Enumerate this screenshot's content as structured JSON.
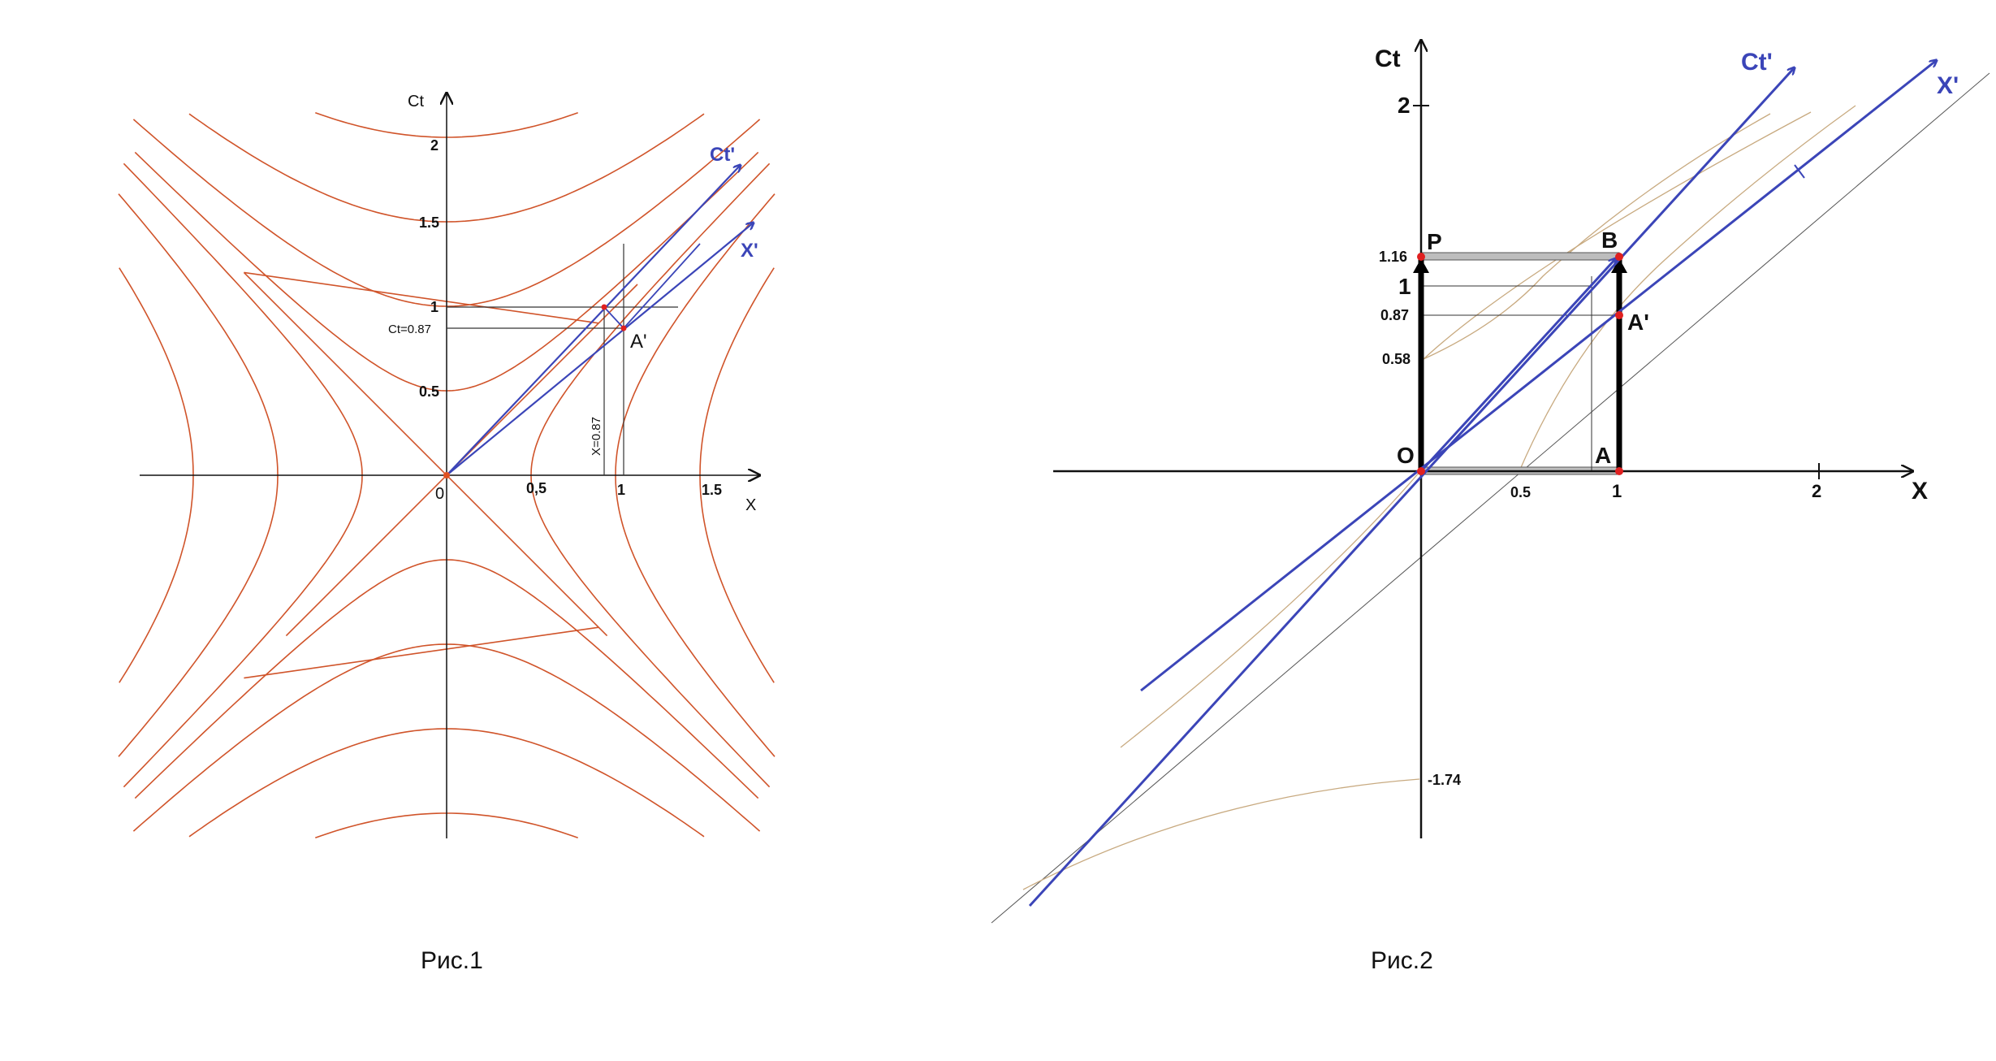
{
  "colors": {
    "hyperbola1": "#d0542a",
    "hyperbola2": "#c8aa80",
    "frame": "#3b45b8",
    "axis": "#111111",
    "grid": "#333333",
    "point": "#e02020",
    "bar": "#bdbdbd"
  },
  "fig1": {
    "caption": "Рис.1",
    "axis_x": "X",
    "axis_ct": "Ct",
    "origin": "0",
    "x_ticks": [
      "0,5",
      "1",
      "1.5"
    ],
    "ct_ticks": [
      "0.5",
      "1",
      "1.5",
      "2"
    ],
    "ctp_label": "Ct'",
    "xp_label": "X'",
    "ap_label": "A'",
    "ct_value": "Ct=0.87",
    "x_value": "X=0.87",
    "hyperbola_intervals": [
      0.5,
      1,
      1.5,
      2
    ]
  },
  "fig2": {
    "caption": "Рис.2",
    "axis_x": "X",
    "axis_ct": "Ct",
    "ctp_label": "Ct'",
    "xp_label": "X'",
    "x_ticks": [
      "0.5",
      "1",
      "2"
    ],
    "ct_ticks": [
      "1.16",
      "1",
      "0.87",
      "0.58",
      "2",
      "-1.74"
    ],
    "labels": {
      "O": "O",
      "A": "A",
      "B": "B",
      "P": "P",
      "Ap": "A'"
    }
  }
}
